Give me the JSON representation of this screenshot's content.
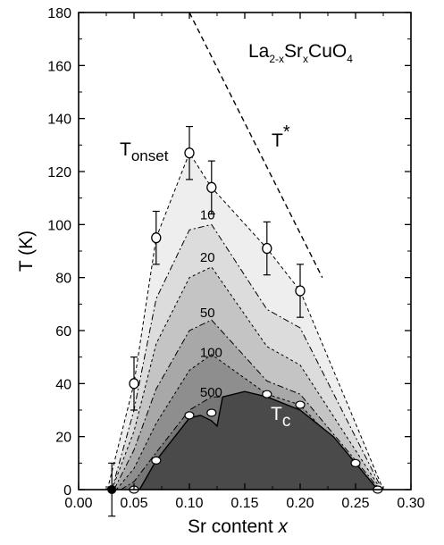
{
  "chart_data": {
    "type": "area",
    "xlabel": "Sr content",
    "xlabel_var": "x",
    "ylabel": "T (K)",
    "xlim": [
      0.0,
      0.3
    ],
    "ylim": [
      0,
      180
    ],
    "xticks": [
      "0.00",
      "0.05",
      "0.10",
      "0.15",
      "0.20",
      "0.25",
      "0.30"
    ],
    "yticks": [
      "0",
      "20",
      "40",
      "60",
      "80",
      "100",
      "120",
      "140",
      "160",
      "180"
    ],
    "grid": false,
    "legend": "none",
    "title_parts": {
      "la": "La",
      "la_sub": "2-x",
      "sr": "Sr",
      "sr_sub": "x",
      "cuo": "CuO",
      "cuo_sub": "4"
    },
    "label_onset": {
      "base": "T",
      "sub": "onset"
    },
    "label_tstar": {
      "base": "T",
      "sup": "*"
    },
    "label_tc": {
      "base": "T",
      "sub": "c"
    },
    "contour_labels": [
      {
        "text": "10",
        "x": 0.112,
        "y": 102
      },
      {
        "text": "20",
        "x": 0.112,
        "y": 86
      },
      {
        "text": "50",
        "x": 0.112,
        "y": 65
      },
      {
        "text": "100",
        "x": 0.112,
        "y": 50
      },
      {
        "text": "500",
        "x": 0.112,
        "y": 35
      }
    ],
    "series": [
      {
        "name": "T_onset",
        "fill": "#eeeeee",
        "x": [
          0.026,
          0.05,
          0.07,
          0.1,
          0.12,
          0.17,
          0.2,
          0.275
        ],
        "y": [
          0,
          40,
          95,
          127,
          114,
          91,
          75,
          0
        ]
      },
      {
        "name": "10",
        "fill": "#dcdcdc",
        "x": [
          0.03,
          0.05,
          0.07,
          0.1,
          0.12,
          0.17,
          0.2,
          0.274
        ],
        "y": [
          0,
          30,
          72,
          98,
          100,
          68,
          61,
          0
        ]
      },
      {
        "name": "20",
        "fill": "#c4c4c4",
        "x": [
          0.03,
          0.05,
          0.07,
          0.1,
          0.12,
          0.17,
          0.2,
          0.273
        ],
        "y": [
          0,
          22,
          55,
          80,
          84,
          54,
          47,
          0
        ]
      },
      {
        "name": "50",
        "fill": "#a8a8a8",
        "x": [
          0.032,
          0.05,
          0.07,
          0.1,
          0.12,
          0.17,
          0.2,
          0.272
        ],
        "y": [
          0,
          15,
          38,
          60,
          64,
          41,
          36,
          0
        ]
      },
      {
        "name": "100",
        "fill": "#8e8e8e",
        "x": [
          0.034,
          0.05,
          0.07,
          0.1,
          0.12,
          0.17,
          0.2,
          0.271
        ],
        "y": [
          0,
          8,
          25,
          45,
          51,
          36,
          32,
          0
        ]
      },
      {
        "name": "500",
        "fill": "#777777",
        "x": [
          0.038,
          0.05,
          0.07,
          0.1,
          0.12,
          0.15,
          0.17,
          0.2,
          0.27
        ],
        "y": [
          0,
          3,
          14,
          30,
          35,
          35,
          34,
          30,
          0
        ]
      },
      {
        "name": "Tc",
        "fill": "#4a4a4a",
        "x": [
          0.055,
          0.07,
          0.1,
          0.11,
          0.12,
          0.125,
          0.13,
          0.15,
          0.17,
          0.2,
          0.23,
          0.25,
          0.27
        ],
        "y": [
          0,
          11,
          27,
          28,
          26,
          24,
          35,
          37,
          35,
          30,
          20,
          10,
          0
        ]
      }
    ],
    "onset_points": [
      {
        "x": 0.05,
        "y": 40,
        "err": 10
      },
      {
        "x": 0.07,
        "y": 95,
        "err": 10
      },
      {
        "x": 0.1,
        "y": 127,
        "err": 10
      },
      {
        "x": 0.12,
        "y": 114,
        "err": 10
      },
      {
        "x": 0.17,
        "y": 91,
        "err": 10
      },
      {
        "x": 0.2,
        "y": 75,
        "err": 10
      }
    ],
    "tc_points": [
      {
        "x": 0.05,
        "y": 0
      },
      {
        "x": 0.07,
        "y": 11
      },
      {
        "x": 0.1,
        "y": 28
      },
      {
        "x": 0.12,
        "y": 29
      },
      {
        "x": 0.17,
        "y": 36
      },
      {
        "x": 0.2,
        "y": 32
      },
      {
        "x": 0.25,
        "y": 10
      },
      {
        "x": 0.27,
        "y": 0
      }
    ],
    "black_point": {
      "x": 0.03,
      "y": 0,
      "err": 10
    },
    "tstar_line": {
      "x": [
        0.1,
        0.22
      ],
      "y": [
        180,
        80
      ]
    }
  }
}
